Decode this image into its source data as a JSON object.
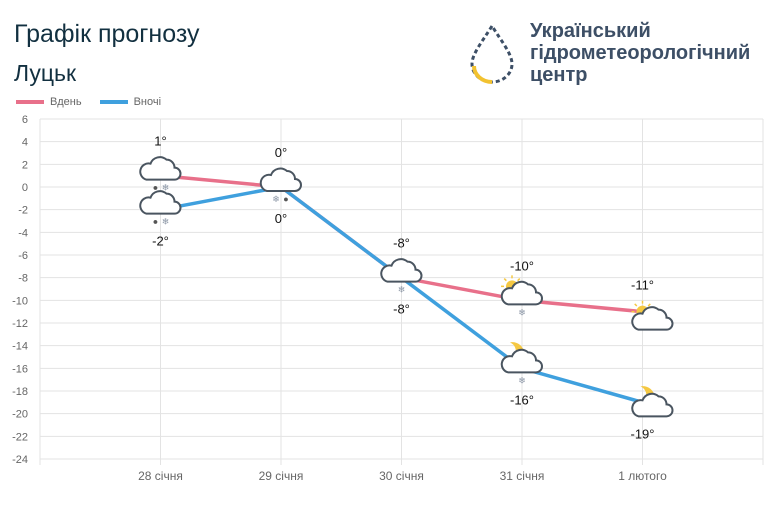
{
  "header": {
    "title": "Графік прогнозу",
    "city": "Луцьк"
  },
  "org": {
    "line1": "Український",
    "line2": "гідрометеорологічний",
    "line3": "центр"
  },
  "colors": {
    "day": "#e8708a",
    "night": "#3fa0de",
    "grid": "#e3e3e3",
    "icon": "#4a5560",
    "sun": "#f5c842"
  },
  "chart_data": {
    "type": "line",
    "categories": [
      "28 січня",
      "29 січня",
      "30 січня",
      "31 січня",
      "1 лютого"
    ],
    "ylim": [
      -24,
      6
    ],
    "yticks": [
      6,
      4,
      2,
      0,
      -2,
      -4,
      -6,
      -8,
      -10,
      -12,
      -14,
      -16,
      -18,
      -20,
      -22,
      -24
    ],
    "grid": true,
    "legend": "top-left",
    "series": [
      {
        "name": "Вдень",
        "values": [
          1,
          0,
          -8,
          -10,
          -11
        ],
        "labels": [
          "1°",
          "0°",
          "-8°",
          "-10°",
          "-11°"
        ],
        "icons": [
          "cloud-rain-snow",
          "cloud-snow-rain",
          "cloud-snow",
          "sun-cloud-snow",
          "sun-cloud"
        ]
      },
      {
        "name": "Вночі",
        "values": [
          -2,
          0,
          -8,
          -16,
          -19
        ],
        "labels": [
          "-2°",
          "0°",
          "-8°",
          "-16°",
          "-19°"
        ],
        "icons": [
          "cloud-rain-snow",
          "cloud-snow-rain",
          "cloud-snow",
          "moon-cloud-snow",
          "moon-cloud"
        ]
      }
    ]
  }
}
